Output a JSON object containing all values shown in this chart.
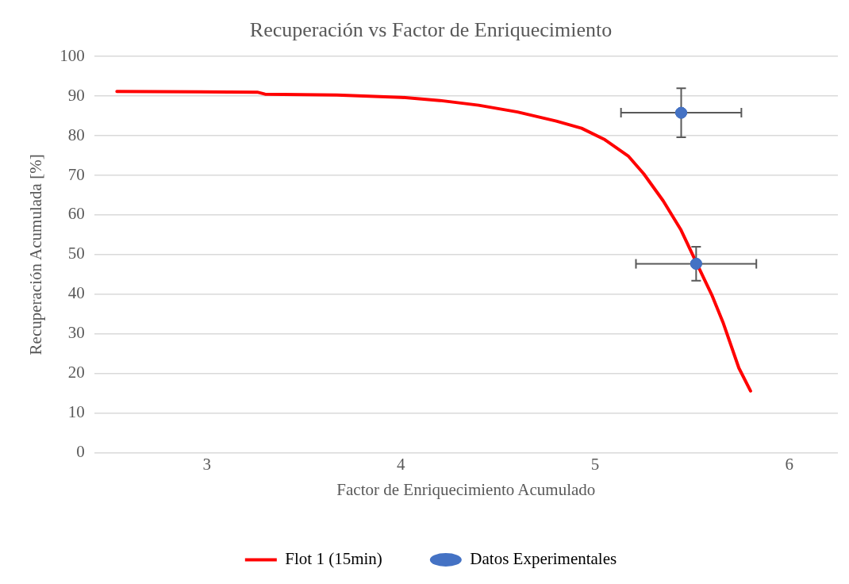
{
  "chart_data": {
    "type": "line",
    "title": "Recuperación vs Factor de Enriquecimiento",
    "xlabel": "Factor de Enriquecimiento Acumulado",
    "ylabel": "Recuperación Acumulada [%]",
    "xlim": [
      2.42,
      6.25
    ],
    "xticks": [
      3,
      4,
      5,
      6
    ],
    "ylim": [
      0,
      100
    ],
    "yticks": [
      0,
      10,
      20,
      30,
      40,
      50,
      60,
      70,
      80,
      90,
      100
    ],
    "grid": "y",
    "legend": "bottom",
    "series": [
      {
        "name": "Flot 1 (15min)",
        "color": "#ff0000",
        "marker": "none",
        "line_style": "solid",
        "x": [
          2.537,
          3.26,
          3.3,
          3.67,
          4.0,
          4.2,
          4.4,
          4.6,
          4.8,
          4.93,
          5.05,
          5.17,
          5.25,
          5.35,
          5.44,
          5.52,
          5.6,
          5.66,
          5.74,
          5.8
        ],
        "values": [
          91.2,
          91.0,
          90.5,
          90.3,
          89.7,
          88.9,
          87.7,
          86.0,
          83.7,
          81.9,
          79.0,
          74.9,
          70.4,
          63.6,
          56.4,
          48.1,
          39.9,
          32.7,
          21.4,
          15.6
        ]
      },
      {
        "name": "Datos Experimentales",
        "type": "scatter",
        "color": "#4472c4",
        "marker": "circle",
        "x": [
          5.443,
          5.52
        ],
        "values": [
          85.8,
          47.7
        ],
        "errors": [
          6.2,
          4.3
        ],
        "xerrors": [
          0.31,
          0.31
        ]
      }
    ]
  }
}
